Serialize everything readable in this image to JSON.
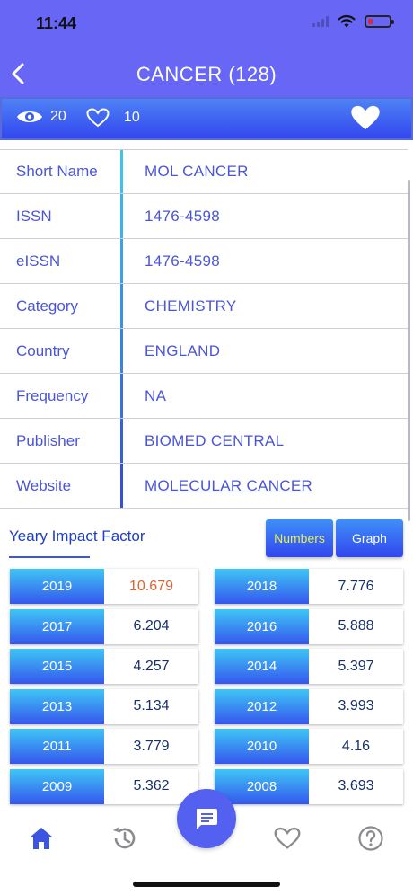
{
  "status_bar": {
    "time": "11:44"
  },
  "header": {
    "title": "CANCER (128)"
  },
  "stats": {
    "views": "20",
    "likes": "10"
  },
  "info": [
    {
      "label": "Short Name",
      "value": "MOL CANCER",
      "link": false
    },
    {
      "label": "ISSN",
      "value": "1476-4598",
      "link": false
    },
    {
      "label": "eISSN",
      "value": "1476-4598",
      "link": false
    },
    {
      "label": "Category",
      "value": "CHEMISTRY",
      "link": false
    },
    {
      "label": "Country",
      "value": "ENGLAND",
      "link": false
    },
    {
      "label": "Frequency",
      "value": "NA",
      "link": false
    },
    {
      "label": "Publisher",
      "value": "BIOMED CENTRAL",
      "link": false
    },
    {
      "label": "Website",
      "value": "MOLECULAR CANCER",
      "link": true
    }
  ],
  "impact": {
    "title": "Yeary Impact Factor",
    "toggle_numbers": "Numbers",
    "toggle_graph": "Graph",
    "rows": [
      {
        "year": "2019",
        "value": "10.679"
      },
      {
        "year": "2018",
        "value": "7.776"
      },
      {
        "year": "2017",
        "value": "6.204"
      },
      {
        "year": "2016",
        "value": "5.888"
      },
      {
        "year": "2015",
        "value": "4.257"
      },
      {
        "year": "2014",
        "value": "5.397"
      },
      {
        "year": "2013",
        "value": "5.134"
      },
      {
        "year": "2012",
        "value": "3.993"
      },
      {
        "year": "2011",
        "value": "3.779"
      },
      {
        "year": "2010",
        "value": "4.16"
      },
      {
        "year": "2009",
        "value": "5.362"
      },
      {
        "year": "2008",
        "value": "3.693"
      }
    ]
  },
  "colors": {
    "header": "#6766f5",
    "accent": "#3b55e0",
    "highlight_value": "#e0632b",
    "numbers_active": "#e8f14a"
  },
  "tabs": [
    "home-icon",
    "history-icon",
    "chat-icon",
    "heart-icon",
    "help-icon"
  ]
}
